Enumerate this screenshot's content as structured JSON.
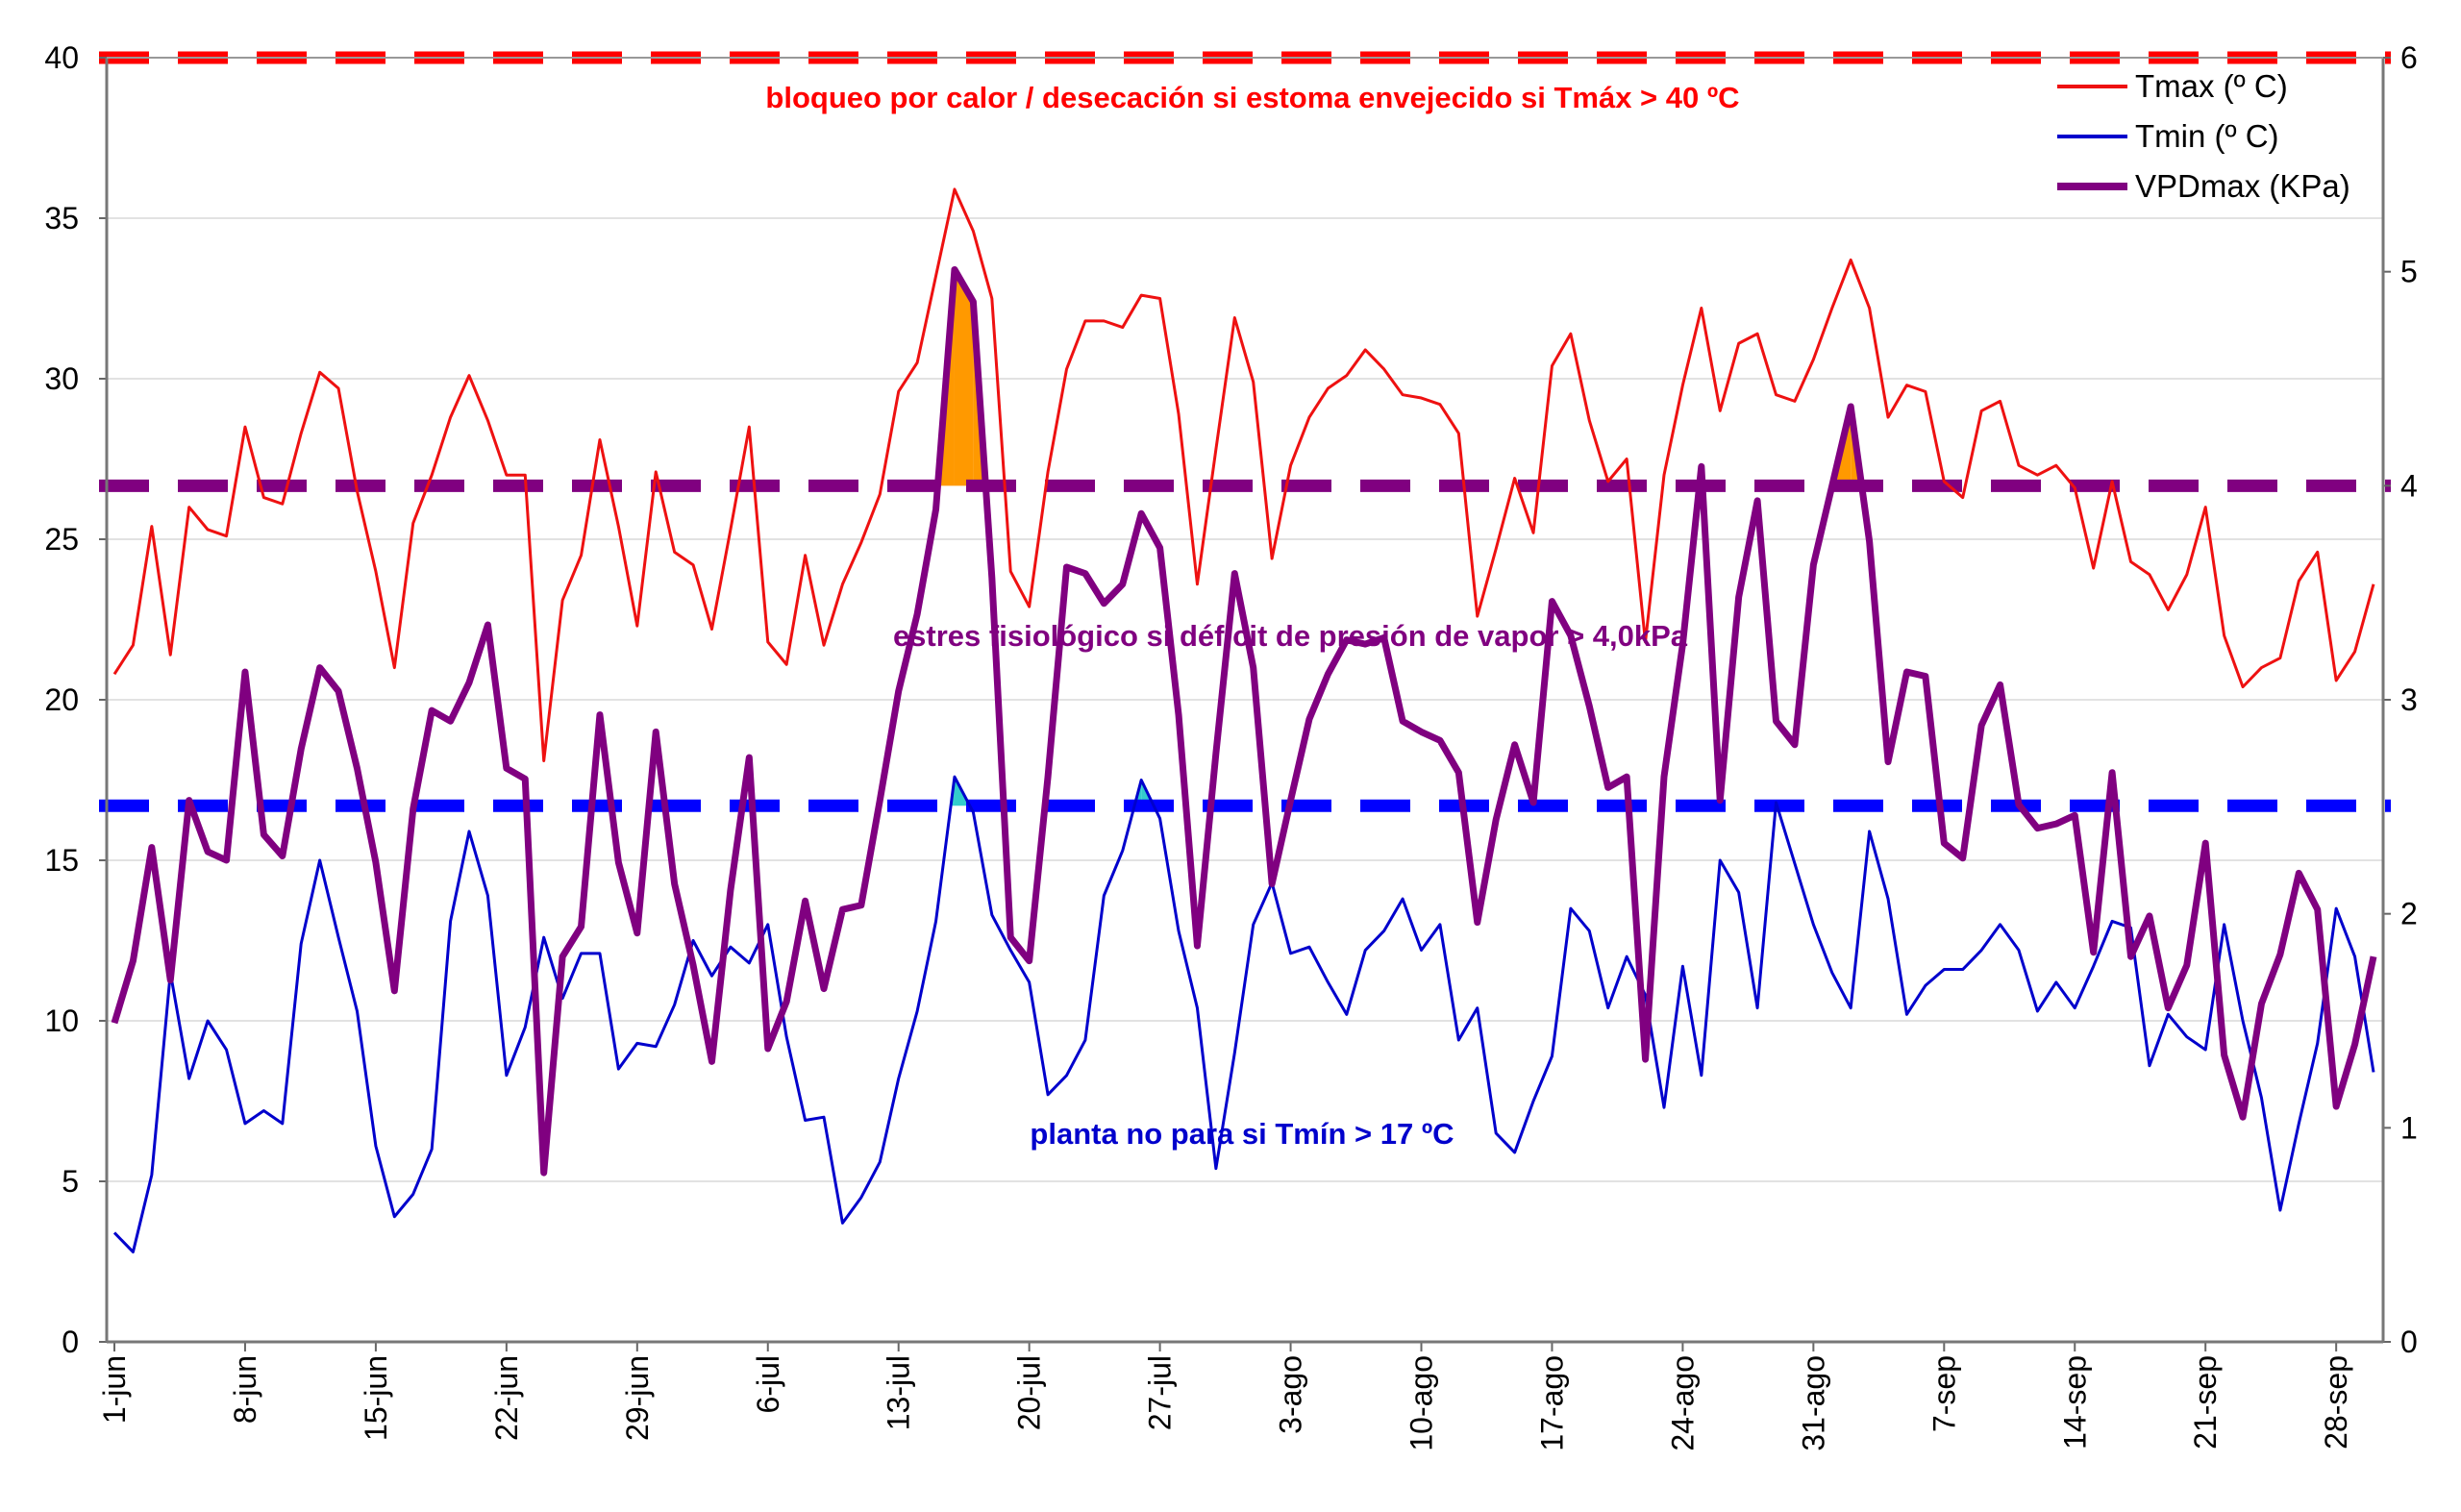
{
  "chart_data": {
    "type": "line",
    "title": "",
    "xlabel": "",
    "ylabel": "",
    "y2label": "",
    "ylim": [
      0,
      40
    ],
    "y2lim": [
      0,
      6
    ],
    "yticks": [
      0,
      5,
      10,
      15,
      20,
      25,
      30,
      35,
      40
    ],
    "y2ticks": [
      0,
      1,
      2,
      3,
      4,
      5,
      6
    ],
    "grid": true,
    "legend_position": "top-right",
    "x_start": "1-jun",
    "x_end": "30-sep",
    "xtick_labels": [
      "1-jun",
      "8-jun",
      "15-jun",
      "22-jun",
      "29-jun",
      "6-jul",
      "13-jul",
      "20-jul",
      "27-jul",
      "3-ago",
      "10-ago",
      "17-ago",
      "24-ago",
      "31-ago",
      "7-sep",
      "14-sep",
      "21-sep",
      "28-sep"
    ],
    "xtick_step_days": 7,
    "series": [
      {
        "name": "Tmax (º C)",
        "axis": "left",
        "color": "#ee1111",
        "values": [
          20.8,
          21.7,
          25.4,
          21.4,
          26.0,
          25.3,
          25.1,
          28.5,
          26.3,
          26.1,
          28.3,
          30.2,
          29.7,
          26.5,
          24.0,
          21.0,
          25.5,
          27.0,
          28.8,
          30.1,
          28.7,
          27.0,
          27.0,
          18.1,
          23.1,
          24.5,
          28.1,
          25.4,
          22.3,
          27.1,
          24.6,
          24.2,
          22.2,
          25.3,
          28.5,
          21.8,
          21.1,
          24.5,
          21.7,
          23.6,
          24.9,
          26.4,
          29.6,
          30.5,
          33.2,
          35.9,
          34.6,
          32.5,
          24.0,
          22.9,
          27.1,
          30.3,
          31.8,
          31.8,
          31.6,
          32.6,
          32.5,
          28.9,
          23.6,
          27.8,
          31.9,
          29.9,
          24.4,
          27.3,
          28.8,
          29.7,
          30.1,
          30.9,
          30.3,
          29.5,
          29.4,
          29.2,
          28.3,
          22.6,
          24.7,
          26.9,
          25.2,
          30.4,
          31.4,
          28.7,
          26.8,
          27.5,
          21.8,
          27.0,
          29.8,
          32.2,
          29.0,
          31.1,
          31.4,
          29.5,
          29.3,
          30.6,
          32.2,
          33.7,
          32.2,
          28.8,
          29.8,
          29.6,
          26.8,
          26.3,
          29.0,
          29.3,
          27.3,
          27.0,
          27.3,
          26.6,
          24.1,
          26.8,
          24.3,
          23.9,
          22.8,
          23.9,
          26.0,
          22.0,
          20.4,
          21.0,
          21.3,
          23.7,
          24.6,
          20.6,
          21.5,
          23.6
        ]
      },
      {
        "name": "Tmin (º C)",
        "axis": "left",
        "color": "#0000cc",
        "values": [
          3.4,
          2.8,
          5.2,
          11.5,
          8.2,
          10.0,
          9.1,
          6.8,
          7.2,
          6.8,
          12.4,
          15.0,
          12.6,
          10.3,
          6.1,
          3.9,
          4.6,
          6.0,
          13.1,
          15.9,
          13.9,
          8.3,
          9.8,
          12.6,
          10.7,
          12.1,
          12.1,
          8.5,
          9.3,
          9.2,
          10.5,
          12.5,
          11.4,
          12.3,
          11.8,
          13.0,
          9.5,
          6.9,
          7.0,
          3.7,
          4.5,
          5.6,
          8.2,
          10.3,
          13.1,
          17.6,
          16.5,
          13.3,
          12.2,
          11.2,
          7.7,
          8.3,
          9.4,
          13.9,
          15.3,
          17.5,
          16.3,
          12.8,
          10.4,
          5.4,
          9.0,
          13.0,
          14.3,
          12.1,
          12.3,
          11.2,
          10.2,
          12.2,
          12.8,
          13.8,
          12.2,
          13.0,
          9.4,
          10.4,
          6.5,
          5.9,
          7.5,
          8.9,
          13.5,
          12.8,
          10.4,
          12.0,
          10.8,
          7.3,
          11.7,
          8.3,
          15.0,
          14.0,
          10.4,
          16.8,
          14.9,
          13.0,
          11.5,
          10.4,
          15.9,
          13.8,
          10.2,
          11.1,
          11.6,
          11.6,
          12.2,
          13.0,
          12.2,
          10.3,
          11.2,
          10.4,
          11.7,
          13.1,
          12.9,
          8.6,
          10.2,
          9.5,
          9.1,
          13.0,
          10.0,
          7.6,
          4.1,
          6.8,
          9.3,
          13.5,
          12.0,
          8.4
        ]
      },
      {
        "name": "VPDmax (KPa)",
        "axis": "right",
        "color": "#800080",
        "values": [
          1.49,
          1.78,
          2.31,
          1.69,
          2.53,
          2.29,
          2.25,
          3.13,
          2.37,
          2.27,
          2.77,
          3.15,
          3.04,
          2.68,
          2.24,
          1.64,
          2.49,
          2.95,
          2.9,
          3.08,
          3.35,
          2.68,
          2.63,
          0.79,
          1.8,
          1.94,
          2.93,
          2.24,
          1.91,
          2.85,
          2.14,
          1.76,
          1.31,
          2.11,
          2.73,
          1.37,
          1.59,
          2.06,
          1.65,
          2.02,
          2.04,
          2.53,
          3.04,
          3.4,
          3.89,
          5.01,
          4.86,
          3.57,
          1.89,
          1.78,
          2.64,
          3.62,
          3.59,
          3.45,
          3.54,
          3.87,
          3.71,
          2.93,
          1.85,
          2.75,
          3.59,
          3.15,
          2.14,
          2.53,
          2.91,
          3.12,
          3.28,
          3.26,
          3.29,
          2.9,
          2.85,
          2.81,
          2.66,
          1.96,
          2.44,
          2.79,
          2.52,
          3.46,
          3.3,
          2.97,
          2.59,
          2.64,
          1.32,
          2.64,
          3.26,
          4.09,
          2.53,
          3.48,
          3.93,
          2.9,
          2.79,
          3.63,
          4.0,
          4.37,
          3.74,
          2.71,
          3.13,
          3.11,
          2.33,
          2.26,
          2.88,
          3.07,
          2.51,
          2.4,
          2.42,
          2.46,
          1.82,
          2.66,
          1.8,
          1.99,
          1.56,
          1.76,
          2.33,
          1.34,
          1.05,
          1.58,
          1.81,
          2.19,
          2.02,
          1.1,
          1.39,
          1.8
        ]
      }
    ],
    "thresholds": [
      {
        "key": "heat",
        "axis": "left",
        "value": 40,
        "color": "#ff0000",
        "label": "bloqueo por calor / desecación si estoma envejecido si Tmáx > 40 ºC"
      },
      {
        "key": "vpd",
        "axis": "right",
        "value": 4.0,
        "color": "#800080",
        "label": "estres fisiológico si déficit de presión de vapor > 4,0kPa",
        "exceed_fill": "#ff9900"
      },
      {
        "key": "tmin",
        "axis": "left",
        "value": 16.7,
        "color": "#0000ff",
        "label": "planta no para si Tmín > 17 ºC",
        "exceed_fill": "#33cccc"
      }
    ]
  }
}
